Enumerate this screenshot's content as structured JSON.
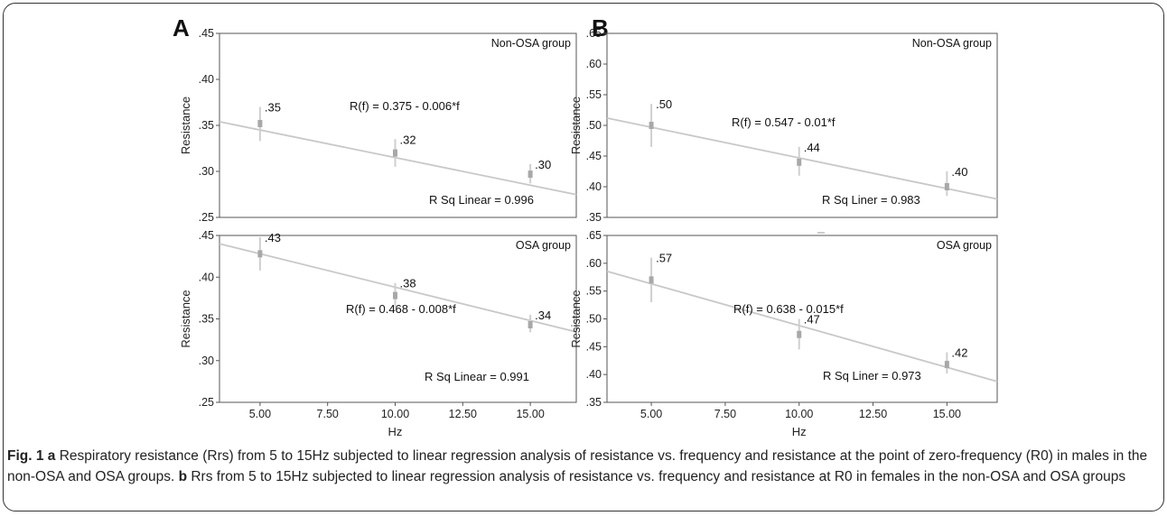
{
  "chart_data": [
    {
      "type": "line",
      "panel_letter": "A",
      "group": "Non-OSA group",
      "equation": "R(f) = 0.375 - 0.006*f",
      "r_squared_label": "R Sq Linear = 0.996",
      "ylabel": "Resistance",
      "xlabel": "",
      "ylim": [
        0.25,
        0.45
      ],
      "yticks": [
        ".45",
        ".40",
        ".35",
        ".30",
        ".25"
      ],
      "xlim": [
        3.5,
        16.7
      ],
      "points": [
        {
          "x": 5,
          "y": 0.352,
          "low": 0.333,
          "high": 0.37,
          "label": ".35"
        },
        {
          "x": 10,
          "y": 0.32,
          "low": 0.305,
          "high": 0.335,
          "label": ".32"
        },
        {
          "x": 15,
          "y": 0.297,
          "low": 0.287,
          "high": 0.308,
          "label": ".30"
        }
      ],
      "fit": {
        "intercept": 0.375,
        "slope": -0.006
      }
    },
    {
      "type": "line",
      "panel_letter": "",
      "group": "OSA group",
      "equation": "R(f) = 0.468 - 0.008*f",
      "r_squared_label": "R Sq Linear = 0.991",
      "ylabel": "Resistance",
      "xlabel": "Hz",
      "ylim": [
        0.25,
        0.45
      ],
      "yticks": [
        ".45",
        ".40",
        ".35",
        ".30",
        ".25"
      ],
      "xlim": [
        3.5,
        16.7
      ],
      "xticks": [
        "5.00",
        "7.50",
        "10.00",
        "12.50",
        "15.00"
      ],
      "points": [
        {
          "x": 5,
          "y": 0.428,
          "low": 0.408,
          "high": 0.448,
          "label": ".43"
        },
        {
          "x": 10,
          "y": 0.378,
          "low": 0.364,
          "high": 0.393,
          "label": ".38"
        },
        {
          "x": 15,
          "y": 0.343,
          "low": 0.334,
          "high": 0.355,
          "label": ".34"
        }
      ],
      "fit": {
        "intercept": 0.468,
        "slope": -0.008
      }
    },
    {
      "type": "line",
      "panel_letter": "B",
      "group": "Non-OSA group",
      "equation": "R(f) = 0.547 - 0.01*f",
      "r_squared_label": "R Sq Liner = 0.983",
      "ylabel": "Resistance",
      "xlabel": "",
      "ylim": [
        0.35,
        0.65
      ],
      "yticks": [
        ".65",
        ".60",
        ".55",
        ".50",
        ".45",
        ".40",
        ".35"
      ],
      "xlim": [
        3.5,
        16.7
      ],
      "points": [
        {
          "x": 5,
          "y": 0.5,
          "low": 0.465,
          "high": 0.535,
          "label": ".50"
        },
        {
          "x": 10,
          "y": 0.44,
          "low": 0.418,
          "high": 0.465,
          "label": ".44"
        },
        {
          "x": 15,
          "y": 0.4,
          "low": 0.385,
          "high": 0.425,
          "label": ".40"
        }
      ],
      "fit": {
        "intercept": 0.547,
        "slope": -0.01
      }
    },
    {
      "type": "line",
      "panel_letter": "",
      "group": "OSA group",
      "equation": "R(f) = 0.638 - 0.015*f",
      "r_squared_label": "R Sq Liner = 0.973",
      "ylabel": "Resistance",
      "xlabel": "Hz",
      "ylim": [
        0.35,
        0.65
      ],
      "yticks": [
        ".65",
        ".60",
        ".55",
        ".50",
        ".45",
        ".40",
        ".35"
      ],
      "xlim": [
        3.5,
        16.7
      ],
      "xticks": [
        "5.00",
        "7.50",
        "10.00",
        "12.50",
        "15.00"
      ],
      "points": [
        {
          "x": 5,
          "y": 0.57,
          "low": 0.53,
          "high": 0.61,
          "label": ".57"
        },
        {
          "x": 10,
          "y": 0.472,
          "low": 0.445,
          "high": 0.5,
          "label": ".47"
        },
        {
          "x": 15,
          "y": 0.418,
          "low": 0.402,
          "high": 0.44,
          "label": ".42"
        }
      ],
      "fit": {
        "intercept": 0.638,
        "slope": -0.015
      }
    }
  ],
  "caption": {
    "fig_label": "Fig. 1",
    "part_a": "a",
    "text_a": " Respiratory resistance (Rrs) from 5 to 15Hz subjected to linear regression analysis of resistance vs. frequency and resistance at the point of zero-frequency (R0) in males in the non-OSA and OSA groups. ",
    "part_b": "b",
    "text_b": " Rrs from 5 to 15Hz subjected to linear regression analysis of resistance vs. frequency and resistance at R0 in females in the non-OSA and OSA groups"
  },
  "colors": {
    "fit_line": "#c8c8c8",
    "marker": "#a8a8a8",
    "error_bar": "#cfcfcf",
    "axis": "#555555"
  }
}
